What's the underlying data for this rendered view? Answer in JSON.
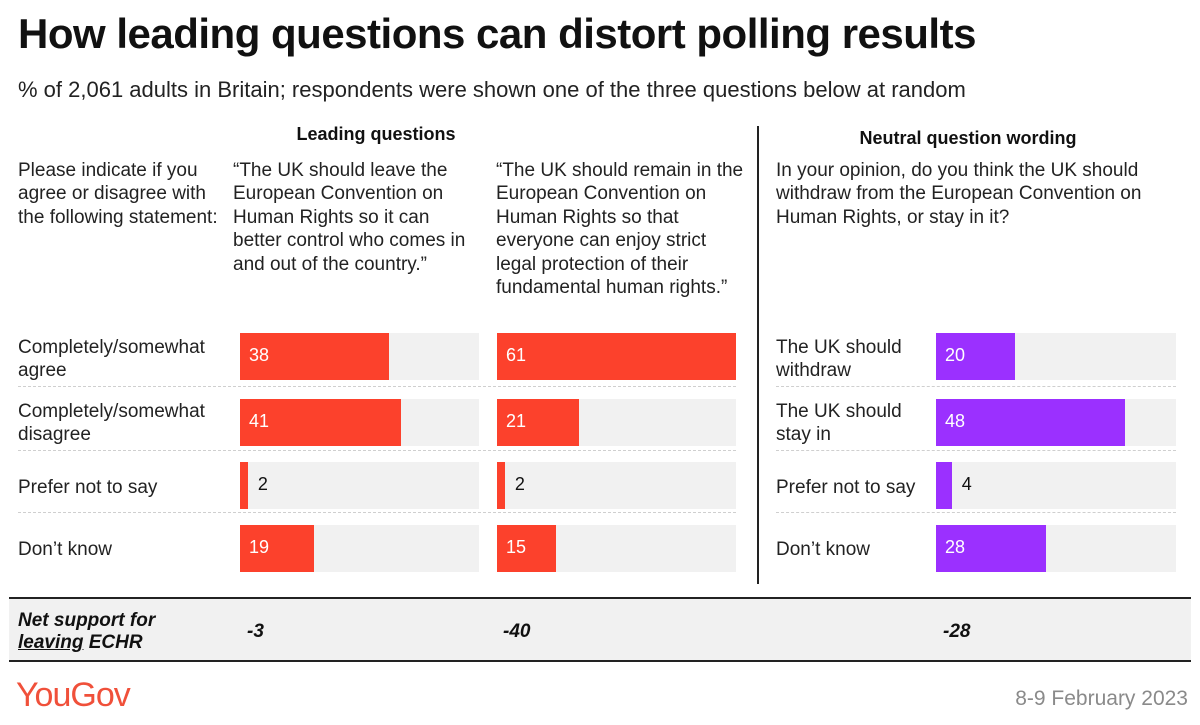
{
  "title": "How leading questions can distort polling results",
  "subtitle": "% of 2,061 adults in Britain; respondents were shown one of the three questions below at random",
  "groups": {
    "leading": "Leading questions",
    "neutral": "Neutral question wording"
  },
  "intro_text": "Please indicate if you agree or disagree with the following statement:",
  "colors": {
    "leading": "#fc412c",
    "neutral": "#9b30ff",
    "track": "#f1f1f1"
  },
  "chart_data": {
    "type": "bar",
    "orientation": "horizontal",
    "title": "How leading questions can distort polling results",
    "xlim": [
      0,
      61
    ],
    "panels": [
      {
        "group": "Leading questions",
        "question": "“The UK should leave the European Convention on Human Rights so it can better control who comes in and out of the country.”",
        "categories": [
          "Completely/somewhat agree",
          "Completely/somewhat disagree",
          "Prefer not to say",
          "Don’t know"
        ],
        "values": [
          38,
          41,
          2,
          19
        ],
        "net": "-3"
      },
      {
        "group": "Leading questions",
        "question": "“The UK should remain in the European Convention on Human Rights so that everyone can enjoy strict legal protection of their fundamental human rights.”",
        "categories": [
          "Completely/somewhat agree",
          "Completely/somewhat disagree",
          "Prefer not to say",
          "Don’t know"
        ],
        "values": [
          61,
          21,
          2,
          15
        ],
        "net": "-40"
      },
      {
        "group": "Neutral question wording",
        "question": "In your opinion, do you think the UK should withdraw from the European Convention on Human Rights, or stay in it?",
        "categories": [
          "The UK should withdraw",
          "The UK should stay in",
          "Prefer not to say",
          "Don’t know"
        ],
        "values": [
          20,
          48,
          4,
          28
        ],
        "net": "-28"
      }
    ]
  },
  "net_label": {
    "line1": "Net support for",
    "underlined": "leaving",
    "rest": " ECHR"
  },
  "footer": {
    "brand": "YouGov",
    "date": "8-9 February 2023"
  }
}
